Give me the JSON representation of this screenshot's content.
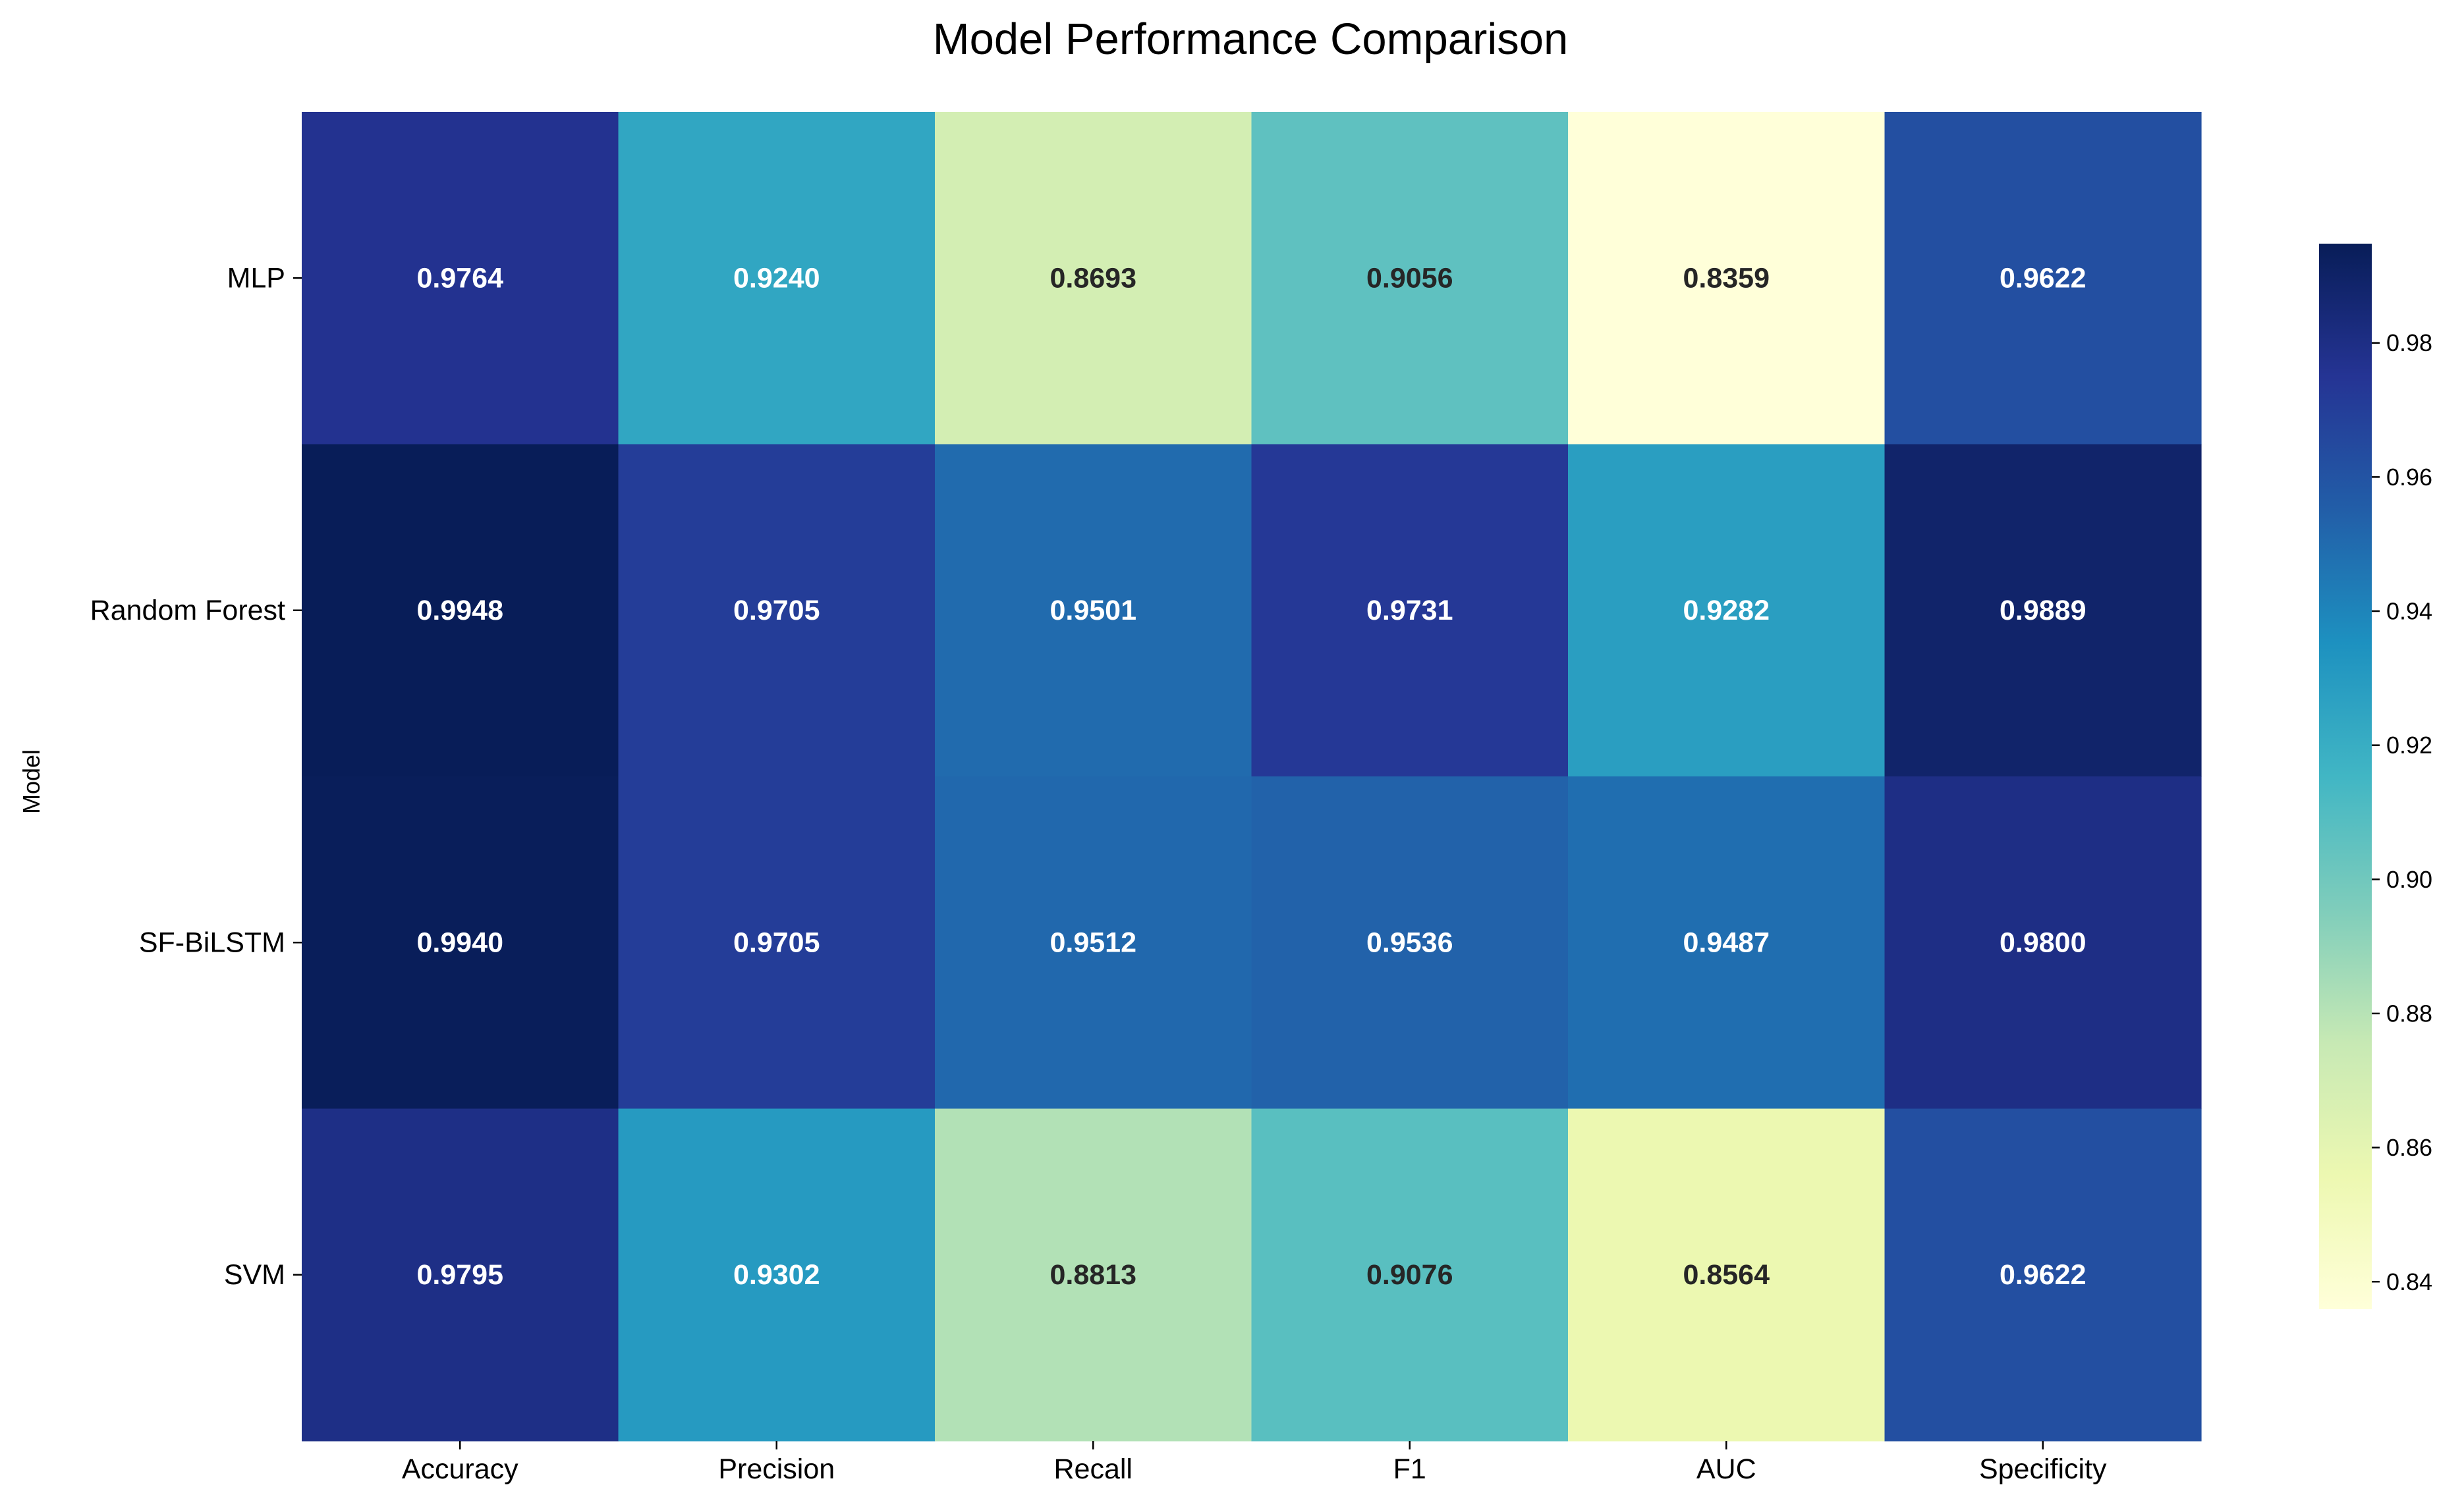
{
  "chart_data": {
    "type": "heatmap",
    "title": "Model Performance Comparison",
    "xlabel": "",
    "ylabel": "Model",
    "x_categories": [
      "Accuracy",
      "Precision",
      "Recall",
      "F1",
      "AUC",
      "Specificity"
    ],
    "y_categories": [
      "MLP",
      "Random Forest",
      "SF-BiLSTM",
      "SVM"
    ],
    "values": [
      [
        0.9764,
        0.924,
        0.8693,
        0.9056,
        0.8359,
        0.9622
      ],
      [
        0.9948,
        0.9705,
        0.9501,
        0.9731,
        0.9282,
        0.9889
      ],
      [
        0.994,
        0.9705,
        0.9512,
        0.9536,
        0.9487,
        0.98
      ],
      [
        0.9795,
        0.9302,
        0.8813,
        0.9076,
        0.8564,
        0.9622
      ]
    ],
    "cell_labels": [
      [
        "0.9764",
        "0.9240",
        "0.8693",
        "0.9056",
        "0.8359",
        "0.9622"
      ],
      [
        "0.9948",
        "0.9705",
        "0.9501",
        "0.9731",
        "0.9282",
        "0.9889"
      ],
      [
        "0.9940",
        "0.9705",
        "0.9512",
        "0.9536",
        "0.9487",
        "0.9800"
      ],
      [
        "0.9795",
        "0.9302",
        "0.8813",
        "0.9076",
        "0.8564",
        "0.9622"
      ]
    ],
    "colormap": "YlGnBu",
    "colorbar": {
      "vmin": 0.8359,
      "vmax": 0.9948,
      "ticks": [
        "0.84",
        "0.86",
        "0.88",
        "0.90",
        "0.92",
        "0.94",
        "0.96",
        "0.98"
      ],
      "tick_values": [
        0.84,
        0.86,
        0.88,
        0.9,
        0.92,
        0.94,
        0.96,
        0.98
      ],
      "position": "right"
    },
    "grid": false,
    "text_colors": {
      "dark": "#262626",
      "light": "#ffffff"
    }
  }
}
